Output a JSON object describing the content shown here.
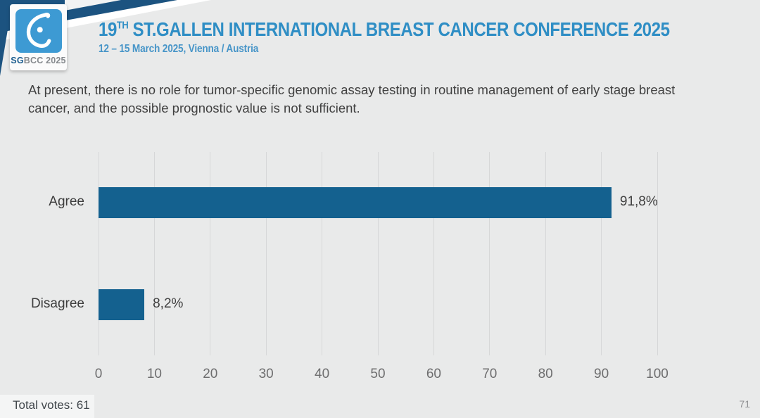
{
  "slide": {
    "logo": {
      "glyph": "sgbcc-breast-drop-icon",
      "badge_text_bold": "SG",
      "badge_text_rest": "BCC 2025"
    },
    "header": {
      "title_prefix": "19",
      "title_superscript": "TH",
      "title_rest": " ST.GALLEN INTERNATIONAL BREAST CANCER CONFERENCE 2025",
      "subtitle": "12 – 15 March 2025, Vienna / Austria"
    },
    "question": "At present, there is no role for tumor-specific genomic assay testing in routine management of early stage breast cancer, and the possible prognostic value is not sufficient.",
    "footer": {
      "total_votes": "Total votes: 61",
      "page_number": "71"
    }
  },
  "chart_data": {
    "type": "bar",
    "orientation": "horizontal",
    "title": "",
    "xlabel": "",
    "ylabel": "",
    "categories": [
      "Agree",
      "Disagree"
    ],
    "values": [
      91.8,
      8.2
    ],
    "value_labels": [
      "91,8%",
      "8,2%"
    ],
    "xlim": [
      0,
      100
    ],
    "x_ticks": [
      0,
      10,
      20,
      30,
      40,
      50,
      60,
      70,
      80,
      90,
      100
    ],
    "grid": "vertical-only",
    "legend": "none",
    "bar_color": "#14618f"
  },
  "colors": {
    "slide_background": "#e9eaea",
    "swoosh_navy": "#1c5380",
    "title_blue": "#2f8ec5",
    "subtitle_blue": "#4795c8",
    "logo_blue": "#3d9ad3",
    "bar_blue": "#14618f",
    "body_text": "#414141",
    "tick_text": "#6e6e6f"
  }
}
